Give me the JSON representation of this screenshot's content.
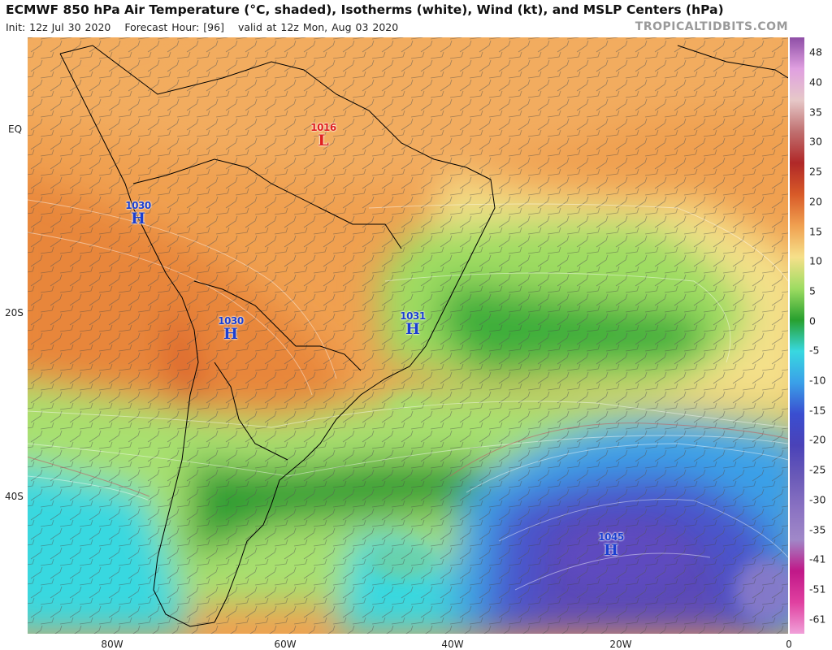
{
  "header": {
    "title": "ECMWF 850 hPa Air Temperature (°C, shaded), Isotherms (white), Wind (kt), and MSLP Centers (hPa)",
    "init": "Init: 12z Jul 30 2020",
    "forecast_hour": "Forecast Hour: [96]",
    "valid": "valid at 12z Mon, Aug 03 2020",
    "credit": "TROPICALTIDBITS.COM"
  },
  "axes": {
    "lat_labels": [
      "EQ",
      "20S",
      "40S"
    ],
    "lon_labels": [
      "80W",
      "60W",
      "40W",
      "20W",
      "0"
    ]
  },
  "colorbar": {
    "labels": [
      "48",
      "40",
      "35",
      "30",
      "25",
      "20",
      "15",
      "10",
      "5",
      "0",
      "-5",
      "-10",
      "-15",
      "-20",
      "-25",
      "-30",
      "-35",
      "-41",
      "-51",
      "-61"
    ],
    "colors": [
      "#8e4ea6",
      "#e0a0e0",
      "#e6c8c8",
      "#c07070",
      "#b02828",
      "#d85a28",
      "#f0a050",
      "#f6e08a",
      "#9edc62",
      "#28a02e",
      "#38d8e0",
      "#3aa0e8",
      "#3a4ed0",
      "#4a42b8",
      "#6a5ab8",
      "#8a72c2",
      "#a088c8",
      "#c01888",
      "#e040a0",
      "#f0a0d8"
    ]
  },
  "pressure_centers": [
    {
      "type": "High",
      "symbol": "H",
      "value": "1030"
    },
    {
      "type": "High",
      "symbol": "H",
      "value": "1030"
    },
    {
      "type": "High",
      "symbol": "H",
      "value": "1031"
    },
    {
      "type": "High",
      "symbol": "H",
      "value": "1045"
    },
    {
      "type": "Low",
      "symbol": "L",
      "value": "1016"
    }
  ]
}
